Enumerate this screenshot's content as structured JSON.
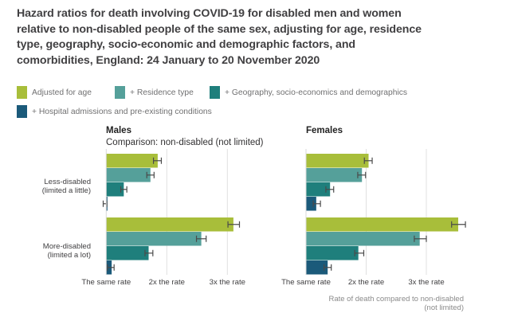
{
  "chart_data": {
    "type": "bar",
    "orientation": "horizontal",
    "title": "Hazard ratios for death involving COVID-19 for disabled men and women relative to non-disabled people of the same sex, adjusting for age, residence type, geography, socio-economic and demographic factors, and comorbidities, England: 24 January to 20 November 2020",
    "legend": {
      "placement": "top-left",
      "entries": [
        {
          "name": "Adjusted for age",
          "color": "#a8be3a"
        },
        {
          "name": "+ Residence type",
          "color": "#55a09a"
        },
        {
          "name": "+ Geography, socio-economics and demographics",
          "color": "#1f7f7c"
        },
        {
          "name": "+ Hospital admissions and pre-existing conditions",
          "color": "#1b5a7a"
        }
      ]
    },
    "categories": [
      "Less-disabled\n(limited a little)",
      "More-disabled\n(limited a lot)"
    ],
    "category_labels": [
      {
        "line1": "Less-disabled",
        "line2": "(limited a little)"
      },
      {
        "line1": "More-disabled",
        "line2": "(limited a lot)"
      }
    ],
    "xlim": [
      1,
      3.7
    ],
    "xticks": [
      {
        "value": 1,
        "label": "The same rate"
      },
      {
        "value": 2,
        "label": "2x the rate"
      },
      {
        "value": 3,
        "label": "3x the rate"
      }
    ],
    "xlabel": "Rate of death compared to non-disabled\n(not limited)",
    "xlabel_lines": [
      "Rate of death compared to non-disabled",
      "(not limited)"
    ],
    "grid": true,
    "panels": [
      {
        "title": "Males",
        "subtitle": "Comparison: non-disabled (not limited)",
        "series": [
          {
            "name": "Adjusted for age",
            "values": [
              1.85,
              3.1
            ],
            "ci_low": [
              1.78,
              3.01
            ],
            "ci_high": [
              1.91,
              3.2
            ]
          },
          {
            "name": "+ Residence type",
            "values": [
              1.73,
              2.57
            ],
            "ci_low": [
              1.67,
              2.49
            ],
            "ci_high": [
              1.79,
              2.65
            ]
          },
          {
            "name": "+ Geography, socio-economics and demographics",
            "values": [
              1.29,
              1.7
            ],
            "ci_low": [
              1.24,
              1.64
            ],
            "ci_high": [
              1.34,
              1.77
            ]
          },
          {
            "name": "+ Hospital admissions and pre-existing conditions",
            "values": [
              1.01,
              1.09
            ],
            "ci_low": [
              0.95,
              1.02
            ],
            "ci_high": [
              1.01,
              1.13
            ]
          }
        ]
      },
      {
        "title": "Females",
        "subtitle": "",
        "series": [
          {
            "name": "Adjusted for age",
            "values": [
              2.04,
              3.53
            ],
            "ci_low": [
              1.97,
              3.42
            ],
            "ci_high": [
              2.1,
              3.65
            ]
          },
          {
            "name": "+ Residence type",
            "values": [
              1.93,
              2.89
            ],
            "ci_low": [
              1.86,
              2.8
            ],
            "ci_high": [
              1.99,
              3.0
            ]
          },
          {
            "name": "+ Geography, socio-economics and demographics",
            "values": [
              1.4,
              1.87
            ],
            "ci_low": [
              1.33,
              1.81
            ],
            "ci_high": [
              1.46,
              1.96
            ]
          },
          {
            "name": "+ Hospital admissions and pre-existing conditions",
            "values": [
              1.17,
              1.36
            ],
            "ci_low": [
              1.12,
              1.3
            ],
            "ci_high": [
              1.24,
              1.42
            ]
          }
        ]
      }
    ]
  }
}
